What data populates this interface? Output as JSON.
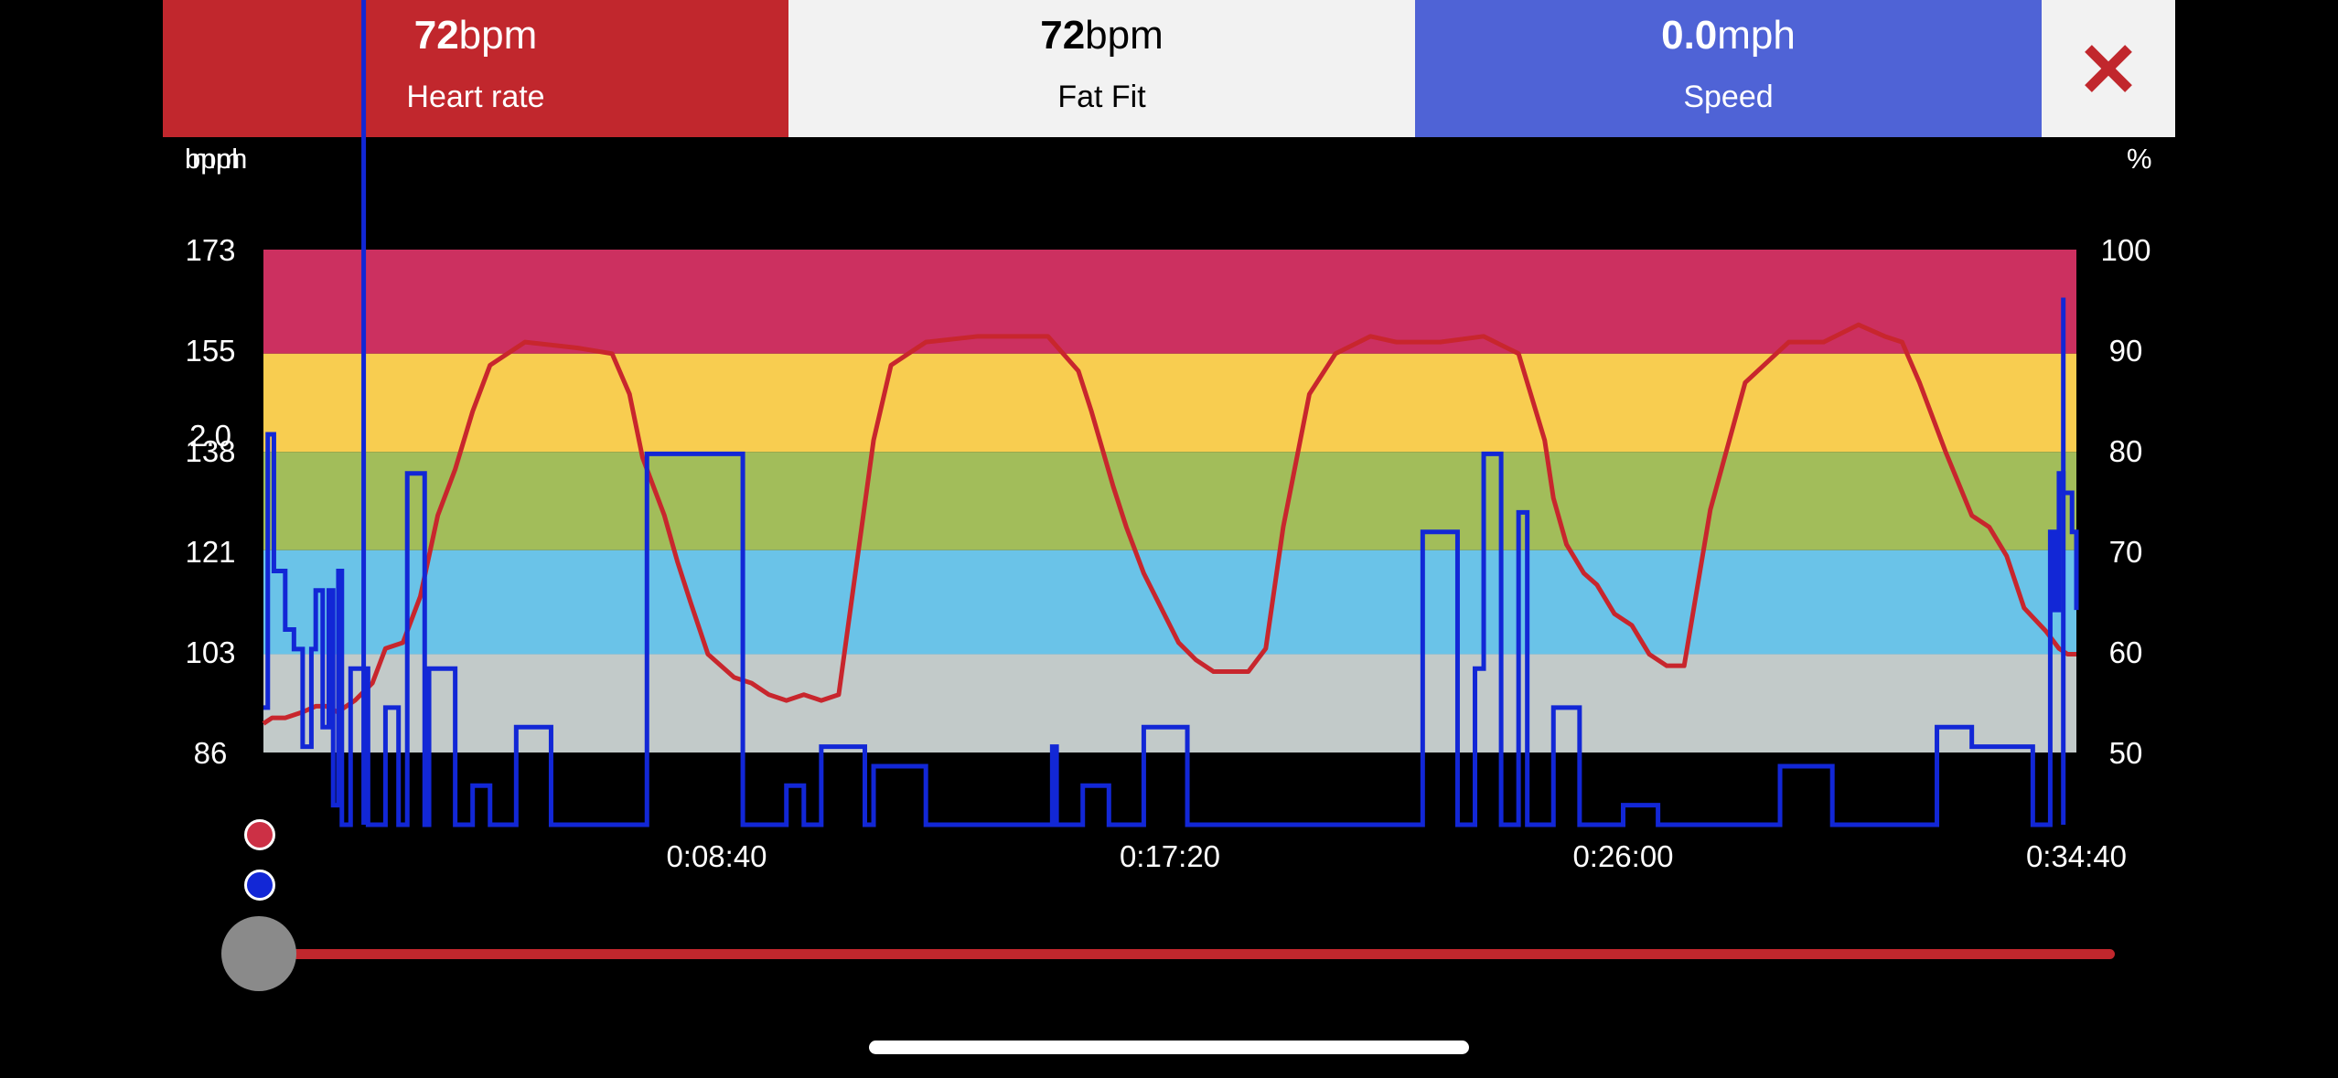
{
  "header": {
    "heart_rate": {
      "value": "72",
      "unit": "bpm",
      "label": "Heart rate",
      "color": "#c1272d"
    },
    "fat_fit": {
      "value": "72",
      "unit": "bpm",
      "label": "Fat Fit",
      "color": "#f2f2f2"
    },
    "speed": {
      "value": "0.0",
      "unit": "mph",
      "label": "Speed",
      "color": "#4f63d6"
    },
    "close_icon": "close-icon"
  },
  "axes": {
    "left_unit_a": "bpm",
    "left_unit_b": "mph",
    "right_unit": "%",
    "left_ticks": [
      "173",
      "155",
      "138",
      "121",
      "103",
      "86"
    ],
    "speed_tick": "2.0",
    "right_ticks": [
      "100",
      "90",
      "80",
      "70",
      "60",
      "50"
    ],
    "x_ticks": [
      "0:08:40",
      "0:17:20",
      "0:26:00",
      "0:34:40"
    ]
  },
  "zones": [
    {
      "name": "zone-5",
      "from": 155,
      "to": 173,
      "color": "#cc3060"
    },
    {
      "name": "zone-4",
      "from": 138,
      "to": 155,
      "color": "#f8cd50"
    },
    {
      "name": "zone-3",
      "from": 121,
      "to": 138,
      "color": "#a2bd5a"
    },
    {
      "name": "zone-2",
      "from": 103,
      "to": 121,
      "color": "#6ac3e8"
    },
    {
      "name": "zone-1",
      "from": 86,
      "to": 103,
      "color": "#c2cac9"
    }
  ],
  "chart_data": {
    "type": "line",
    "xlim_seconds": [
      0,
      2080
    ],
    "ylim_bpm": [
      86,
      173
    ],
    "ylim_percent": [
      50,
      100
    ],
    "series": [
      {
        "name": "Heart rate",
        "color": "#c8262d",
        "x": [
          0,
          10,
          25,
          45,
          60,
          72,
          85,
          105,
          125,
          140,
          160,
          180,
          200,
          220,
          240,
          260,
          300,
          360,
          400,
          420,
          435,
          460,
          475,
          490,
          510,
          540,
          560,
          580,
          600,
          620,
          640,
          660,
          680,
          700,
          720,
          760,
          820,
          900,
          935,
          950,
          975,
          990,
          1010,
          1030,
          1050,
          1070,
          1090,
          1110,
          1130,
          1150,
          1170,
          1200,
          1230,
          1270,
          1300,
          1350,
          1400,
          1440,
          1470,
          1480,
          1495,
          1515,
          1530,
          1550,
          1570,
          1590,
          1610,
          1630,
          1660,
          1700,
          1750,
          1790,
          1830,
          1860,
          1880,
          1900,
          1930,
          1960,
          1980,
          2000,
          2020,
          2045,
          2060,
          2070,
          2080
        ],
        "y": [
          91,
          92,
          92,
          93,
          94,
          94,
          93,
          95,
          98,
          104,
          105,
          113,
          127,
          135,
          145,
          153,
          157,
          156,
          155,
          148,
          137,
          127,
          119,
          112,
          103,
          99,
          98,
          96,
          95,
          96,
          95,
          96,
          118,
          140,
          153,
          157,
          158,
          158,
          152,
          145,
          132,
          125,
          117,
          111,
          105,
          102,
          100,
          100,
          100,
          104,
          125,
          148,
          155,
          158,
          157,
          157,
          158,
          155,
          140,
          130,
          122,
          117,
          115,
          110,
          108,
          103,
          101,
          101,
          128,
          150,
          157,
          157,
          160,
          158,
          157,
          150,
          138,
          127,
          125,
          120,
          111,
          107,
          104,
          103,
          103
        ]
      },
      {
        "name": "Speed",
        "color": "#1227d6",
        "x": [
          0,
          5,
          12,
          25,
          35,
          45,
          55,
          60,
          68,
          75,
          80,
          86,
          90,
          100,
          120,
          140,
          155,
          165,
          185,
          190,
          220,
          240,
          260,
          290,
          330,
          380,
          430,
          440,
          550,
          600,
          620,
          640,
          690,
          700,
          760,
          860,
          905,
          910,
          940,
          970,
          1010,
          1060,
          1100,
          1160,
          1220,
          1300,
          1330,
          1370,
          1390,
          1400,
          1420,
          1440,
          1450,
          1480,
          1510,
          1540,
          1560,
          1600,
          1700,
          1740,
          1800,
          1860,
          1920,
          1960,
          2000,
          2030,
          2050,
          2055,
          2060,
          2065,
          2075,
          2080
        ],
        "y": [
          0.6,
          2.0,
          1.3,
          1.0,
          0.9,
          0.4,
          0.9,
          1.2,
          0.5,
          1.2,
          0.1,
          1.3,
          0.0,
          0.8,
          0.0,
          0.6,
          0.0,
          1.8,
          0.0,
          0.8,
          0.0,
          0.2,
          0.0,
          0.5,
          0.0,
          0.0,
          0.0,
          1.9,
          0.0,
          0.2,
          0.0,
          0.4,
          0.0,
          0.3,
          0.0,
          0.0,
          0.4,
          0.0,
          0.2,
          0.0,
          0.5,
          0.0,
          0.0,
          0.0,
          0.0,
          0.0,
          1.5,
          0.0,
          0.8,
          1.9,
          0.0,
          1.6,
          0.0,
          0.6,
          0.0,
          0.0,
          0.1,
          0.0,
          0.0,
          0.3,
          0.0,
          0.0,
          0.5,
          0.4,
          0.4,
          0.0,
          1.5,
          1.1,
          1.8,
          1.7,
          1.5,
          1.1
        ]
      }
    ],
    "spikes": [
      {
        "series": "Speed",
        "x": 115,
        "y": 4.4
      },
      {
        "series": "Speed",
        "x": 2065,
        "y": 2.7
      }
    ]
  },
  "slider": {
    "position": 0
  }
}
